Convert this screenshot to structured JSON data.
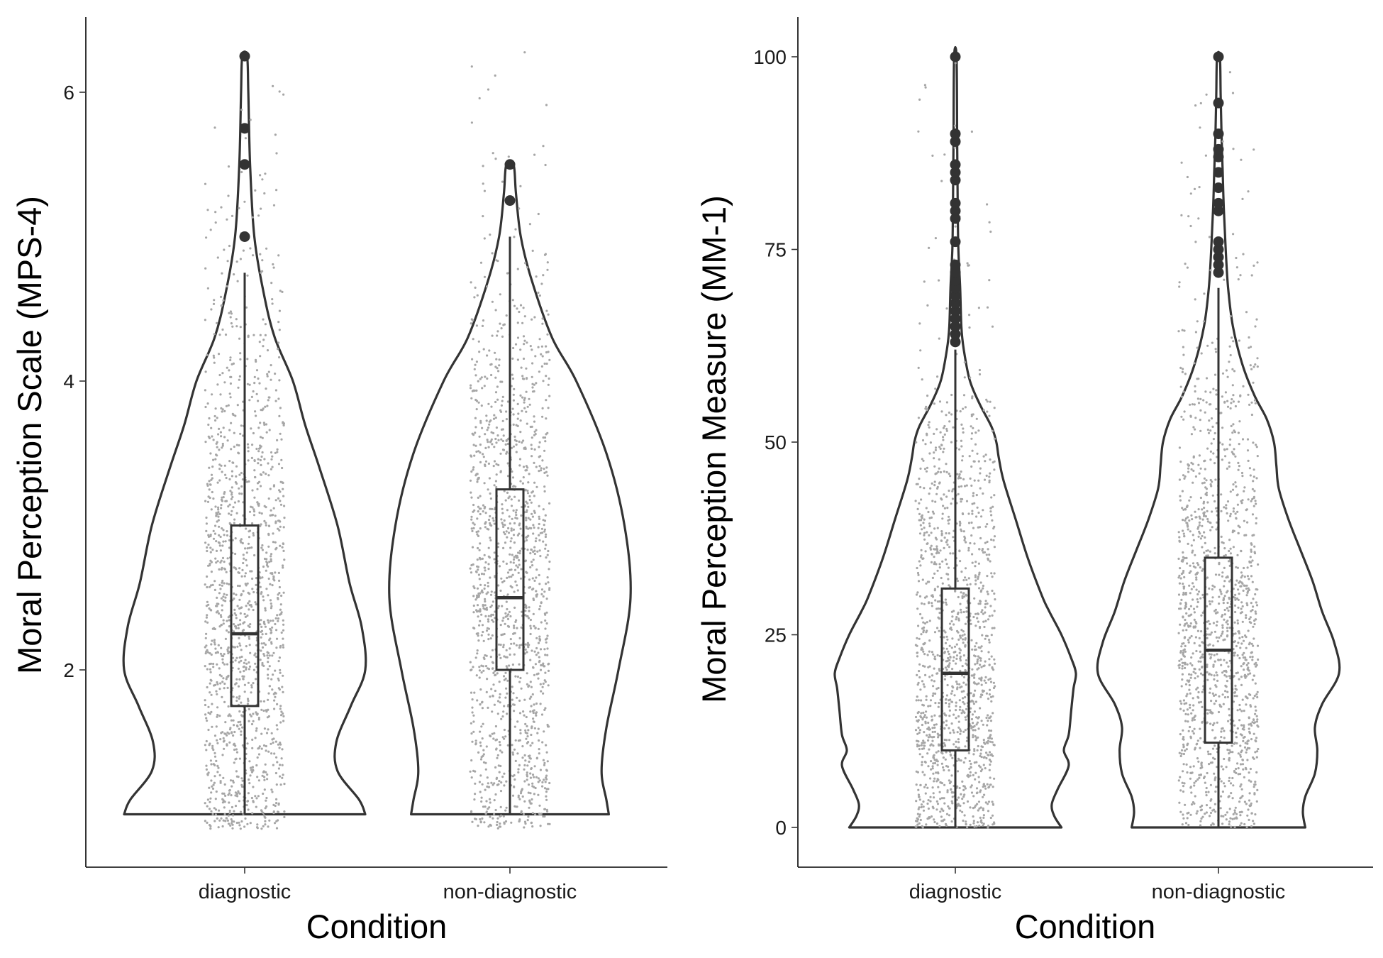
{
  "chart_data": [
    {
      "type": "violin",
      "title": "",
      "xlabel": "Condition",
      "ylabel": "Moral Perception Scale (MPS-4)",
      "ylim": [
        0.7,
        6.55
      ],
      "yticks": [
        2,
        4,
        6
      ],
      "ytick_labels": [
        "2",
        "4",
        "6"
      ],
      "categories": [
        "diagnostic",
        "non-diagnostic"
      ],
      "grid": false,
      "legend": "none",
      "jitter_range": [
        0.9,
        6.3
      ],
      "groups": [
        {
          "name": "diagnostic",
          "box": {
            "whisker_low": 1.0,
            "q1": 1.75,
            "median": 2.25,
            "q3": 3.0,
            "whisker_high": 4.75
          },
          "outliers": [
            5.0,
            5.5,
            5.75,
            6.25
          ],
          "violin_density": [
            [
              1.0,
              1.0
            ],
            [
              1.1,
              0.95
            ],
            [
              1.3,
              0.77
            ],
            [
              1.5,
              0.76
            ],
            [
              1.75,
              0.88
            ],
            [
              2.0,
              1.0
            ],
            [
              2.3,
              0.97
            ],
            [
              2.6,
              0.87
            ],
            [
              3.0,
              0.77
            ],
            [
              3.4,
              0.62
            ],
            [
              3.7,
              0.5
            ],
            [
              4.0,
              0.4
            ],
            [
              4.3,
              0.25
            ],
            [
              4.6,
              0.16
            ],
            [
              5.0,
              0.08
            ],
            [
              5.5,
              0.045
            ],
            [
              6.0,
              0.03
            ],
            [
              6.25,
              0.02
            ]
          ]
        },
        {
          "name": "non-diagnostic",
          "box": {
            "whisker_low": 1.0,
            "q1": 2.0,
            "median": 2.5,
            "q3": 3.25,
            "whisker_high": 5.0
          },
          "outliers": [
            5.25,
            5.5
          ],
          "violin_density": [
            [
              1.0,
              0.82
            ],
            [
              1.1,
              0.8
            ],
            [
              1.3,
              0.76
            ],
            [
              1.6,
              0.8
            ],
            [
              2.0,
              0.9
            ],
            [
              2.5,
              1.0
            ],
            [
              3.0,
              0.95
            ],
            [
              3.5,
              0.8
            ],
            [
              4.0,
              0.55
            ],
            [
              4.3,
              0.35
            ],
            [
              4.7,
              0.18
            ],
            [
              5.0,
              0.09
            ],
            [
              5.3,
              0.05
            ],
            [
              5.5,
              0.03
            ]
          ]
        }
      ]
    },
    {
      "type": "violin",
      "title": "",
      "xlabel": "Condition",
      "ylabel": "Moral Perception Measure (MM-1)",
      "ylim": [
        -5,
        105
      ],
      "yticks": [
        0,
        25,
        50,
        75,
        100
      ],
      "ytick_labels": [
        "0",
        "25",
        "50",
        "75",
        "100"
      ],
      "categories": [
        "diagnostic",
        "non-diagnostic"
      ],
      "grid": false,
      "legend": "none",
      "jitter_range": [
        0,
        100
      ],
      "groups": [
        {
          "name": "diagnostic",
          "box": {
            "whisker_low": 0,
            "q1": 10,
            "median": 20,
            "q3": 31,
            "whisker_high": 62
          },
          "outliers": [
            63,
            64,
            65,
            66,
            67,
            68,
            69,
            70,
            71,
            72,
            73,
            76,
            79,
            80,
            81,
            84,
            85,
            86,
            89,
            90,
            100
          ],
          "violin_density": [
            [
              0,
              0.88
            ],
            [
              1.5,
              0.82
            ],
            [
              3,
              0.8
            ],
            [
              5,
              0.85
            ],
            [
              8,
              0.94
            ],
            [
              10,
              0.9
            ],
            [
              12,
              0.94
            ],
            [
              15,
              0.96
            ],
            [
              18,
              0.98
            ],
            [
              20,
              1.0
            ],
            [
              22,
              0.96
            ],
            [
              25,
              0.88
            ],
            [
              28,
              0.78
            ],
            [
              30,
              0.72
            ],
            [
              35,
              0.6
            ],
            [
              40,
              0.5
            ],
            [
              45,
              0.4
            ],
            [
              48,
              0.36
            ],
            [
              50,
              0.34
            ],
            [
              52,
              0.3
            ],
            [
              55,
              0.2
            ],
            [
              58,
              0.12
            ],
            [
              62,
              0.07
            ],
            [
              65,
              0.05
            ],
            [
              70,
              0.04
            ],
            [
              75,
              0.025
            ],
            [
              80,
              0.02
            ],
            [
              90,
              0.015
            ],
            [
              100,
              0.01
            ]
          ]
        },
        {
          "name": "non-diagnostic",
          "box": {
            "whisker_low": 0,
            "q1": 11,
            "median": 23,
            "q3": 35,
            "whisker_high": 70
          },
          "outliers": [
            72,
            73,
            74,
            75,
            76,
            80,
            81,
            83,
            85,
            87,
            88,
            90,
            94,
            100
          ],
          "violin_density": [
            [
              0,
              0.72
            ],
            [
              2,
              0.7
            ],
            [
              4,
              0.72
            ],
            [
              7,
              0.8
            ],
            [
              10,
              0.82
            ],
            [
              13,
              0.8
            ],
            [
              16,
              0.86
            ],
            [
              20,
              1.0
            ],
            [
              24,
              0.96
            ],
            [
              28,
              0.86
            ],
            [
              32,
              0.78
            ],
            [
              36,
              0.68
            ],
            [
              40,
              0.58
            ],
            [
              44,
              0.5
            ],
            [
              47,
              0.48
            ],
            [
              50,
              0.46
            ],
            [
              53,
              0.4
            ],
            [
              56,
              0.3
            ],
            [
              60,
              0.2
            ],
            [
              65,
              0.12
            ],
            [
              70,
              0.08
            ],
            [
              75,
              0.06
            ],
            [
              80,
              0.045
            ],
            [
              85,
              0.035
            ],
            [
              90,
              0.025
            ],
            [
              95,
              0.018
            ],
            [
              100,
              0.012
            ]
          ]
        }
      ]
    }
  ]
}
